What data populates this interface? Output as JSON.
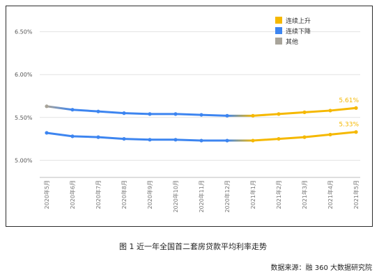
{
  "caption": "图 1 近一年全国首二套房贷款平均利率走势",
  "source": "数据来源：融 360 大数据研究院",
  "chart_data": {
    "type": "line",
    "title": "",
    "xlabel": "",
    "ylabel": "",
    "ylim": [
      4.8,
      6.7
    ],
    "y_ticks": [
      "5.00%",
      "5.50%",
      "6.00%",
      "6.50%"
    ],
    "y_tick_values": [
      5.0,
      5.5,
      6.0,
      6.5
    ],
    "grid": true,
    "legend_position": "top-right",
    "categories": [
      "2020年5月",
      "2020年6月",
      "2020年7月",
      "2020年8月",
      "2020年9月",
      "2020年10月",
      "2020年11月",
      "2020年12月",
      "2021年1月",
      "2021年2月",
      "2021年3月",
      "2021年4月",
      "2021年5月"
    ],
    "legend": [
      {
        "label": "连续上升",
        "color": "#f5b800"
      },
      {
        "label": "连续下降",
        "color": "#3d85f0"
      },
      {
        "label": "其他",
        "color": "#a8a49a"
      }
    ],
    "series": [
      {
        "values": [
          5.63,
          5.59,
          5.57,
          5.55,
          5.54,
          5.54,
          5.53,
          5.52,
          5.52,
          5.54,
          5.56,
          5.58,
          5.61
        ]
      },
      {
        "values": [
          5.32,
          5.28,
          5.27,
          5.25,
          5.24,
          5.24,
          5.23,
          5.23,
          5.23,
          5.25,
          5.27,
          5.3,
          5.33
        ]
      }
    ],
    "data_labels": [
      "5.61%",
      "5.33%"
    ],
    "colors": {
      "rising": "#f5b800",
      "falling": "#3d85f0",
      "other": "#a8a49a",
      "grid": "#e2e2e2",
      "tick": "#555555"
    }
  }
}
